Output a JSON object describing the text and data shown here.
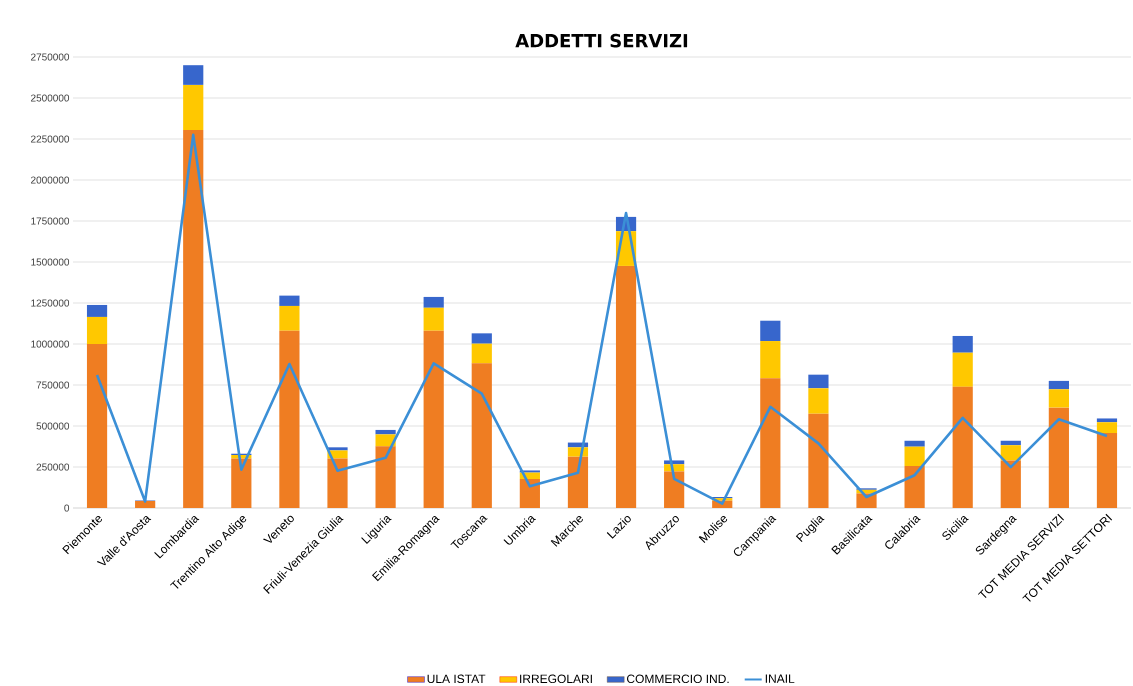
{
  "chart_data": {
    "type": "bar",
    "title": "ADDETTI SERVIZI",
    "stacked": true,
    "grid": "y",
    "legend": "bottom",
    "categories": [
      "Piemonte",
      "Valle d'Aosta",
      "Lombardia",
      "Trentino Alto Adige",
      "Veneto",
      "Friuli-Venezia Giulia",
      "Liguria",
      "Emilia-Romagna",
      "Toscana",
      "Umbria",
      "Marche",
      "Lazio",
      "Abruzzo",
      "Molise",
      "Campania",
      "Puglia",
      "Basilicata",
      "Calabria",
      "Sicilia",
      "Sardegna",
      "TOT MEDIA SERVIZI",
      "TOT MEDIA SETTORI"
    ],
    "series": [
      {
        "name": "ULA ISTAT",
        "color": "#ef7d22",
        "values": [
          1000000,
          43000,
          2305000,
          302000,
          1081000,
          302000,
          376000,
          1081000,
          882000,
          177000,
          313000,
          1476000,
          223000,
          45000,
          791000,
          575000,
          89000,
          256000,
          739000,
          290000,
          612000,
          457000
        ]
      },
      {
        "name": "IRREGOLARI",
        "color": "#ffc800",
        "values": [
          165000,
          null,
          275000,
          21000,
          151000,
          49000,
          73000,
          140000,
          120000,
          39000,
          57000,
          212000,
          44000,
          15000,
          227000,
          155000,
          22000,
          118000,
          208000,
          93000,
          112000,
          66000
        ]
      },
      {
        "name": "COMMERCIO IND.",
        "color": "#3766cc",
        "values": [
          73000,
          3000,
          120000,
          8000,
          63000,
          19000,
          27000,
          66000,
          63000,
          13000,
          29000,
          87000,
          23000,
          7000,
          124000,
          83000,
          9000,
          36000,
          102000,
          27000,
          51000,
          23000
        ]
      },
      {
        "name": "INAIL",
        "type": "line",
        "color": "#3b8fd6",
        "values": [
          811000,
          40000,
          2275000,
          234000,
          878000,
          227000,
          306000,
          882000,
          697000,
          132000,
          215000,
          1799000,
          178000,
          27000,
          617000,
          394000,
          67000,
          200000,
          550000,
          249000,
          541000,
          439000
        ]
      }
    ],
    "ylim": [
      0,
      2750000
    ],
    "yticks": [
      0,
      250000,
      500000,
      750000,
      1000000,
      1250000,
      1500000,
      1750000,
      2000000,
      2250000,
      2500000,
      2750000
    ]
  }
}
